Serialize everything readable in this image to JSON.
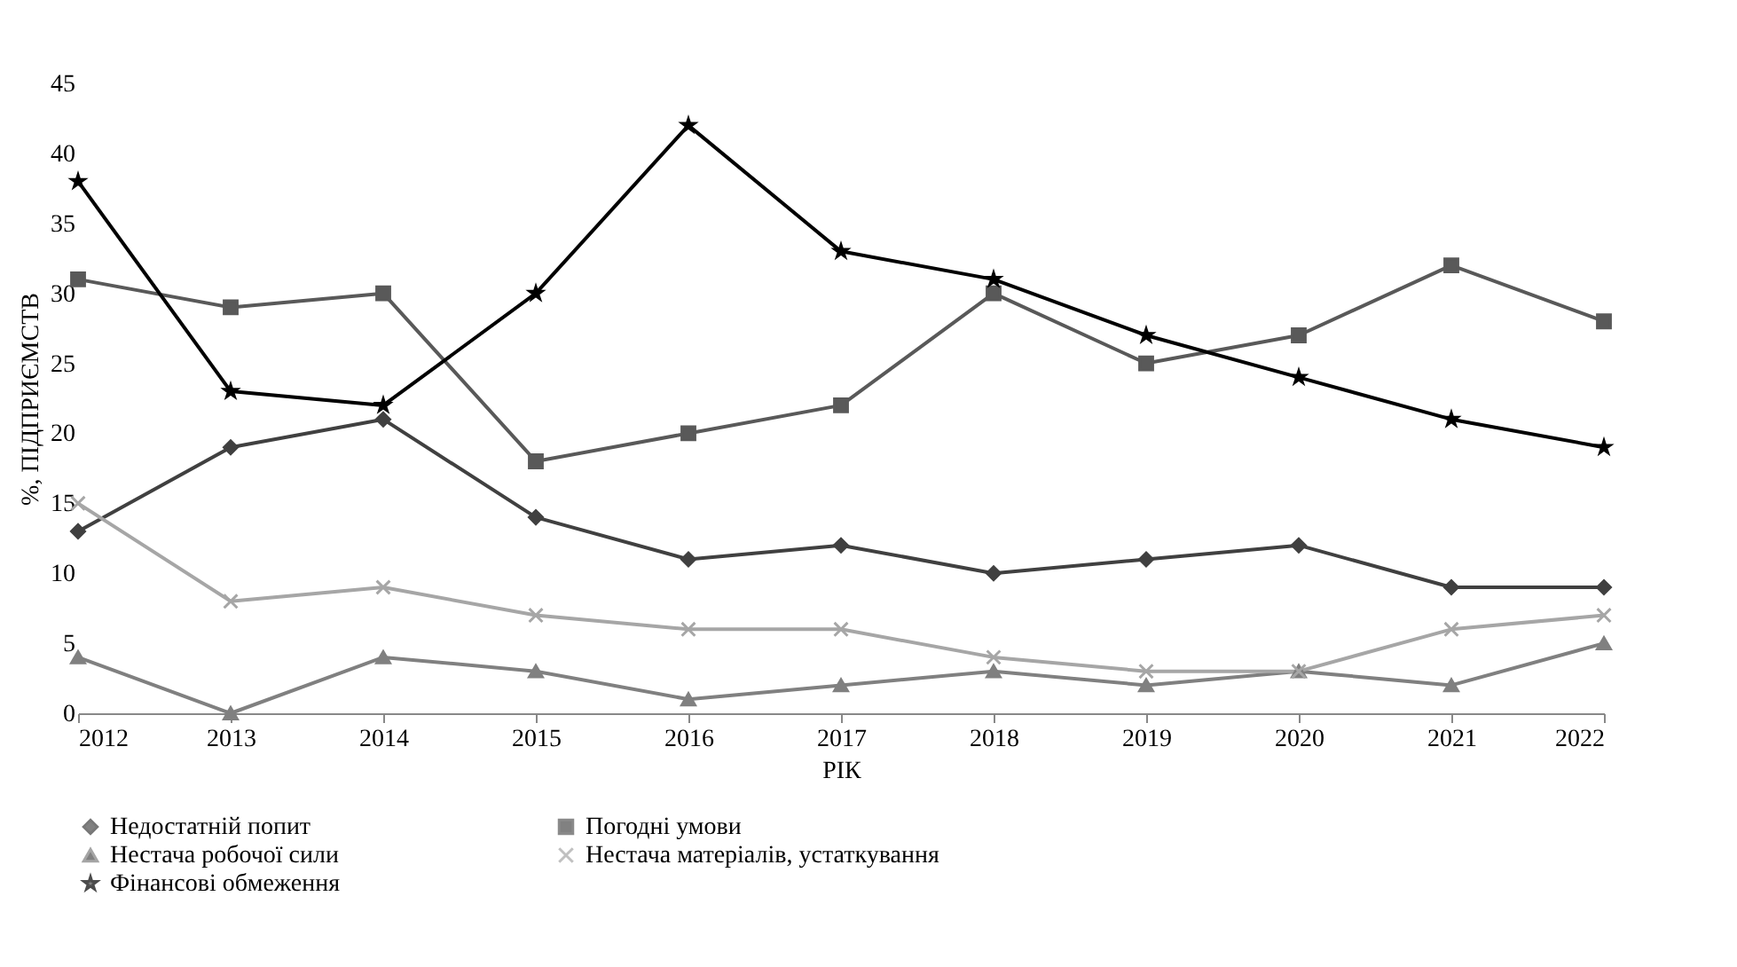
{
  "chart_data": {
    "type": "line",
    "xlabel": "РІК",
    "ylabel": "%, ПІДПРИЄМСТВ",
    "x": [
      2012,
      2013,
      2014,
      2015,
      2016,
      2017,
      2018,
      2019,
      2020,
      2021,
      2022
    ],
    "xlim": [
      2012,
      2022
    ],
    "xticks": [
      2012,
      2013,
      2014,
      2015,
      2016,
      2017,
      2018,
      2019,
      2020,
      2021,
      2022
    ],
    "ylim": [
      0,
      45
    ],
    "yticks": [
      0,
      5,
      10,
      15,
      20,
      25,
      30,
      35,
      40,
      45
    ],
    "grid": false,
    "legend": "bottom",
    "line_style": "solid",
    "series": [
      {
        "name": "Недостатній попит",
        "color": "#404040",
        "marker": "diamond",
        "values": [
          13,
          19,
          21,
          14,
          11,
          12,
          10,
          11,
          12,
          9,
          9
        ]
      },
      {
        "name": "Погодні умови",
        "color": "#595959",
        "marker": "square",
        "values": [
          31,
          29,
          30,
          18,
          20,
          22,
          30,
          25,
          27,
          32,
          28
        ]
      },
      {
        "name": "Нестача робочої сили",
        "color": "#808080",
        "marker": "triangle",
        "values": [
          4,
          0,
          4,
          3,
          1,
          2,
          3,
          2,
          3,
          2,
          5
        ]
      },
      {
        "name": "Нестача матеріалів, устаткування",
        "color": "#a6a6a6",
        "marker": "cross",
        "values": [
          15,
          8,
          9,
          7,
          6,
          6,
          4,
          3,
          3,
          6,
          7
        ]
      },
      {
        "name": "Фінансові обмеження",
        "color": "#000000",
        "marker": "star",
        "values": [
          38,
          23,
          22,
          30,
          42,
          33,
          31,
          27,
          24,
          21,
          19
        ]
      }
    ]
  }
}
